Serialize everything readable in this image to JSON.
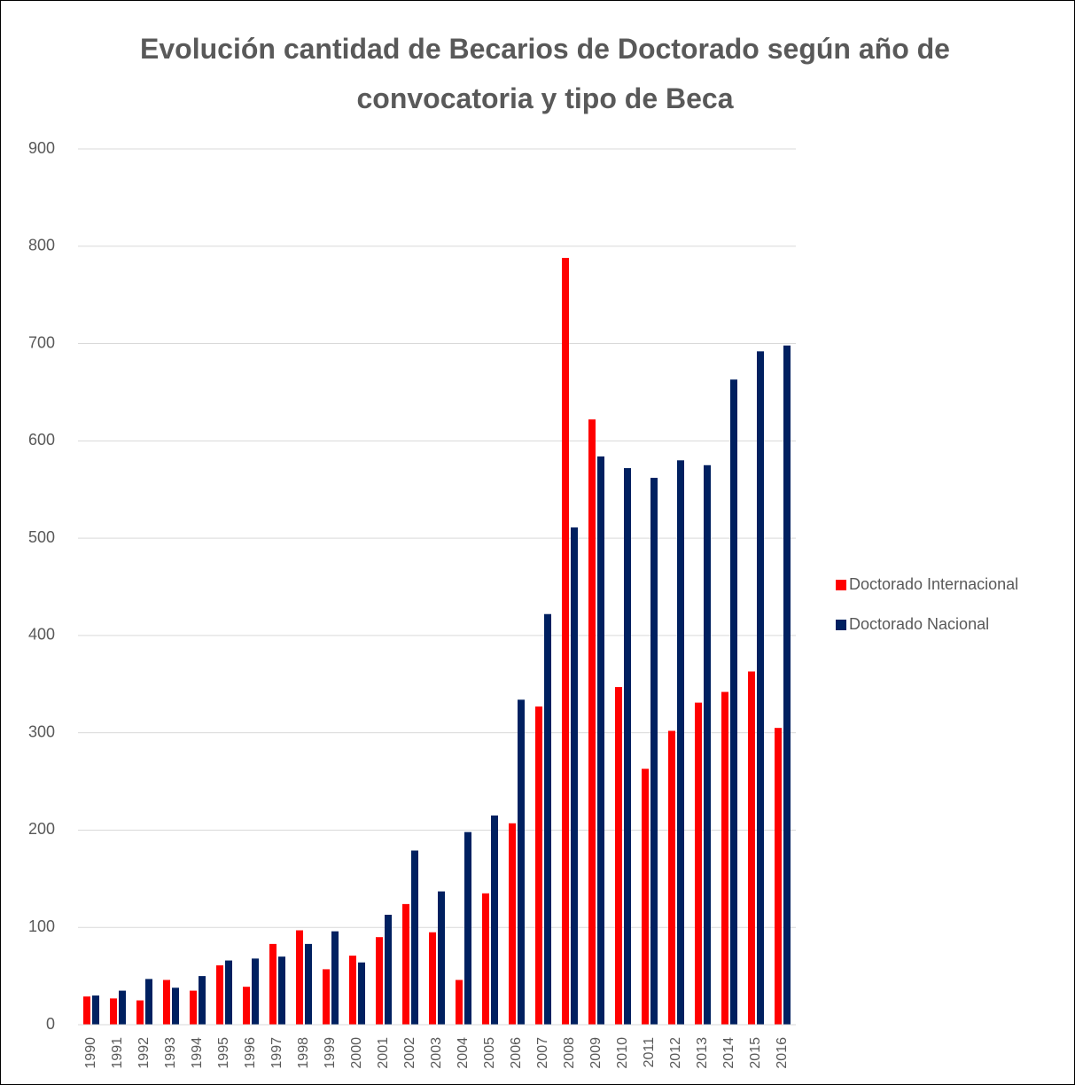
{
  "chart_data": {
    "type": "bar",
    "title": "Evolución cantidad de Becarios de Doctorado según año de convocatoria y tipo de Beca",
    "categories": [
      "1990",
      "1991",
      "1992",
      "1993",
      "1994",
      "1995",
      "1996",
      "1997",
      "1998",
      "1999",
      "2000",
      "2001",
      "2002",
      "2003",
      "2004",
      "2005",
      "2006",
      "2007",
      "2008",
      "2009",
      "2010",
      "2011",
      "2012",
      "2013",
      "2014",
      "2015",
      "2016"
    ],
    "series": [
      {
        "name": "Doctorado Internacional",
        "color": "#ff0000",
        "values": [
          29,
          27,
          25,
          46,
          35,
          61,
          39,
          83,
          97,
          57,
          71,
          90,
          124,
          95,
          46,
          135,
          207,
          327,
          788,
          622,
          347,
          263,
          302,
          331,
          342,
          363,
          305
        ]
      },
      {
        "name": "Doctorado Nacional",
        "color": "#002060",
        "values": [
          30,
          35,
          47,
          38,
          50,
          66,
          68,
          70,
          83,
          96,
          64,
          113,
          179,
          137,
          198,
          215,
          334,
          422,
          511,
          584,
          572,
          562,
          580,
          575,
          663,
          692,
          698
        ]
      }
    ],
    "ylim": [
      0,
      900
    ],
    "yticks": [
      0,
      100,
      200,
      300,
      400,
      500,
      600,
      700,
      800,
      900
    ],
    "grid": true,
    "legend": "right"
  }
}
